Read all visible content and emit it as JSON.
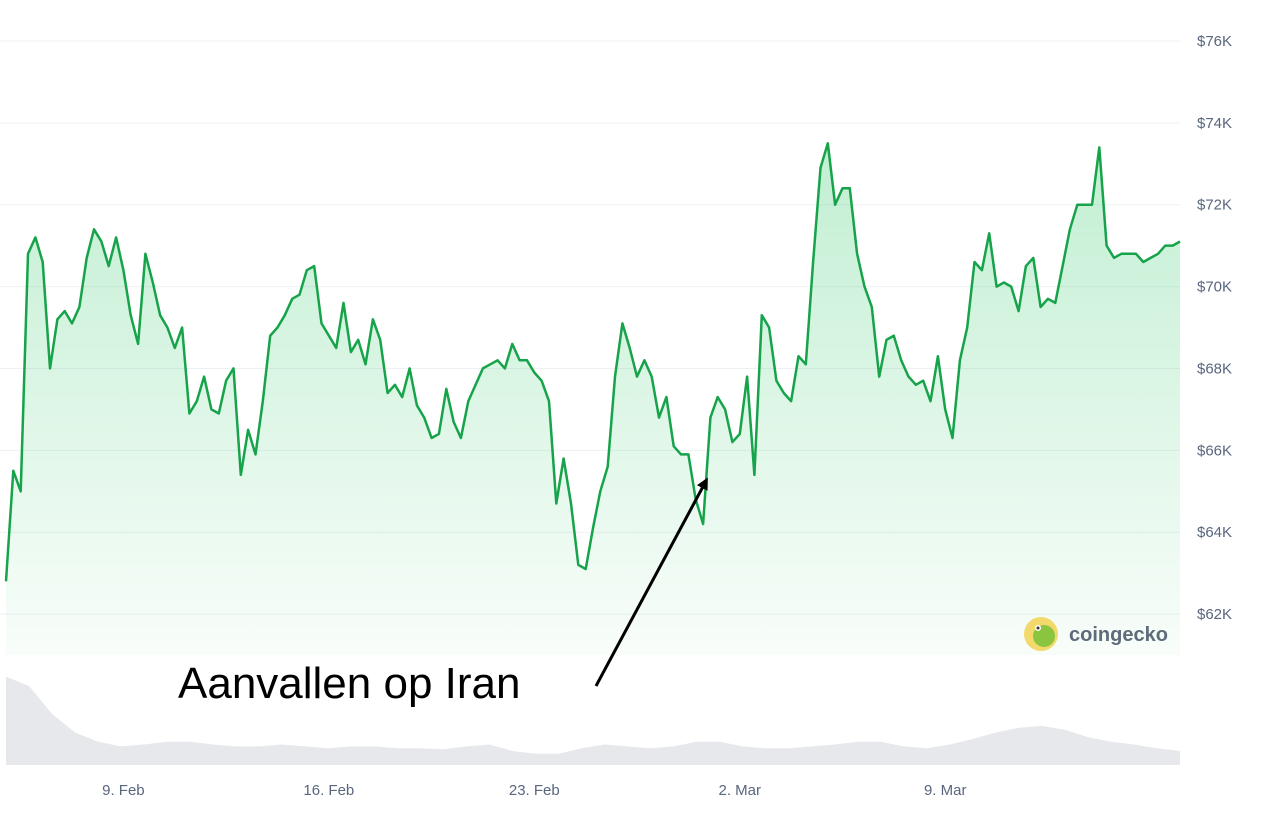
{
  "annotation": {
    "text": "Aanvallen op Iran"
  },
  "brand": {
    "name": "coingecko"
  },
  "colors": {
    "line": "#16a34a",
    "fill": "#22c55e",
    "grid": "#eef0f3",
    "volume": "#e6e8ec",
    "axis_text": "#58667e"
  },
  "chart_data": {
    "type": "area",
    "title": "",
    "xlabel": "",
    "ylabel": "",
    "x_range": [
      "2026-02-05",
      "2026-03-17"
    ],
    "ylim": [
      61000,
      77000
    ],
    "y_ticks": [
      {
        "value": 62000,
        "label": "$62K"
      },
      {
        "value": 64000,
        "label": "$64K"
      },
      {
        "value": 66000,
        "label": "$66K"
      },
      {
        "value": 68000,
        "label": "$68K"
      },
      {
        "value": 70000,
        "label": "$70K"
      },
      {
        "value": 72000,
        "label": "$72K"
      },
      {
        "value": 74000,
        "label": "$74K"
      },
      {
        "value": 76000,
        "label": "$76K"
      }
    ],
    "x_ticks": [
      {
        "date": "2026-02-09",
        "label": "9. Feb"
      },
      {
        "date": "2026-02-16",
        "label": "16. Feb"
      },
      {
        "date": "2026-02-23",
        "label": "23. Feb"
      },
      {
        "date": "2026-03-02",
        "label": "2. Mar"
      },
      {
        "date": "2026-03-09",
        "label": "9. Mar"
      }
    ],
    "grid": true,
    "series": [
      {
        "x": [
          "2026-02-05",
          "2026-02-05 06:00",
          "2026-02-05 12:00",
          "2026-02-05 18:00",
          "2026-02-06",
          "2026-02-06 06:00",
          "2026-02-06 12:00",
          "2026-02-06 18:00",
          "2026-02-07",
          "2026-02-07 06:00",
          "2026-02-07 12:00",
          "2026-02-07 18:00",
          "2026-02-08",
          "2026-02-08 06:00",
          "2026-02-08 12:00",
          "2026-02-08 18:00",
          "2026-02-09",
          "2026-02-09 06:00",
          "2026-02-09 12:00",
          "2026-02-09 18:00",
          "2026-02-10",
          "2026-02-10 06:00",
          "2026-02-10 12:00",
          "2026-02-10 18:00",
          "2026-02-11",
          "2026-02-11 06:00",
          "2026-02-11 12:00",
          "2026-02-11 18:00",
          "2026-02-12",
          "2026-02-12 06:00",
          "2026-02-12 12:00",
          "2026-02-12 18:00",
          "2026-02-13",
          "2026-02-13 06:00",
          "2026-02-13 12:00",
          "2026-02-13 18:00",
          "2026-02-14",
          "2026-02-14 06:00",
          "2026-02-14 12:00",
          "2026-02-14 18:00",
          "2026-02-15",
          "2026-02-15 06:00",
          "2026-02-15 12:00",
          "2026-02-15 18:00",
          "2026-02-16",
          "2026-02-16 06:00",
          "2026-02-16 12:00",
          "2026-02-16 18:00",
          "2026-02-17",
          "2026-02-17 06:00",
          "2026-02-17 12:00",
          "2026-02-17 18:00",
          "2026-02-18",
          "2026-02-18 06:00",
          "2026-02-18 12:00",
          "2026-02-18 18:00",
          "2026-02-19",
          "2026-02-19 06:00",
          "2026-02-19 12:00",
          "2026-02-19 18:00",
          "2026-02-20",
          "2026-02-20 06:00",
          "2026-02-20 12:00",
          "2026-02-20 18:00",
          "2026-02-21",
          "2026-02-21 06:00",
          "2026-02-21 12:00",
          "2026-02-21 18:00",
          "2026-02-22",
          "2026-02-22 06:00",
          "2026-02-22 12:00",
          "2026-02-22 18:00",
          "2026-02-23",
          "2026-02-23 06:00",
          "2026-02-23 12:00",
          "2026-02-23 18:00",
          "2026-02-24",
          "2026-02-24 06:00",
          "2026-02-24 12:00",
          "2026-02-24 18:00",
          "2026-02-25",
          "2026-02-25 06:00",
          "2026-02-25 12:00",
          "2026-02-25 18:00",
          "2026-02-26",
          "2026-02-26 06:00",
          "2026-02-26 12:00",
          "2026-02-26 18:00",
          "2026-02-27",
          "2026-02-27 06:00",
          "2026-02-27 12:00",
          "2026-02-27 18:00",
          "2026-02-28",
          "2026-02-28 06:00",
          "2026-02-28 12:00",
          "2026-02-28 18:00",
          "2026-03-01",
          "2026-03-01 06:00",
          "2026-03-01 12:00",
          "2026-03-01 18:00",
          "2026-03-02",
          "2026-03-02 06:00",
          "2026-03-02 12:00",
          "2026-03-02 18:00",
          "2026-03-03",
          "2026-03-03 06:00",
          "2026-03-03 12:00",
          "2026-03-03 18:00",
          "2026-03-04",
          "2026-03-04 06:00",
          "2026-03-04 12:00",
          "2026-03-04 18:00",
          "2026-03-05",
          "2026-03-05 06:00",
          "2026-03-05 12:00",
          "2026-03-05 18:00",
          "2026-03-06",
          "2026-03-06 06:00",
          "2026-03-06 12:00",
          "2026-03-06 18:00",
          "2026-03-07",
          "2026-03-07 06:00",
          "2026-03-07 12:00",
          "2026-03-07 18:00",
          "2026-03-08",
          "2026-03-08 06:00",
          "2026-03-08 12:00",
          "2026-03-08 18:00",
          "2026-03-09",
          "2026-03-09 06:00",
          "2026-03-09 12:00",
          "2026-03-09 18:00",
          "2026-03-10",
          "2026-03-10 06:00",
          "2026-03-10 12:00",
          "2026-03-10 18:00",
          "2026-03-11",
          "2026-03-11 06:00",
          "2026-03-11 12:00",
          "2026-03-11 18:00",
          "2026-03-12",
          "2026-03-12 06:00",
          "2026-03-12 12:00",
          "2026-03-12 18:00",
          "2026-03-13",
          "2026-03-13 06:00",
          "2026-03-13 12:00",
          "2026-03-13 18:00",
          "2026-03-14",
          "2026-03-14 06:00",
          "2026-03-14 12:00",
          "2026-03-14 18:00",
          "2026-03-15",
          "2026-03-15 06:00",
          "2026-03-15 12:00",
          "2026-03-15 18:00",
          "2026-03-16",
          "2026-03-16 06:00",
          "2026-03-16 12:00",
          "2026-03-16 18:00",
          "2026-03-17"
        ],
        "values": [
          62800,
          65500,
          65000,
          70800,
          71200,
          70600,
          68000,
          69200,
          69400,
          69100,
          69500,
          70700,
          71400,
          71100,
          70500,
          71200,
          70400,
          69300,
          68600,
          70800,
          70100,
          69300,
          69000,
          68500,
          69000,
          66900,
          67200,
          67800,
          67000,
          66900,
          67700,
          68000,
          65400,
          66500,
          65900,
          67200,
          68800,
          69000,
          69300,
          69700,
          69800,
          70400,
          70500,
          69100,
          68800,
          68500,
          69600,
          68400,
          68700,
          68100,
          69200,
          68700,
          67400,
          67600,
          67300,
          68000,
          67100,
          66800,
          66300,
          66400,
          67500,
          66700,
          66300,
          67200,
          67600,
          68000,
          68100,
          68200,
          68000,
          68600,
          68200,
          68200,
          67900,
          67700,
          67200,
          64700,
          65800,
          64700,
          63200,
          63100,
          64100,
          65000,
          65600,
          67800,
          69100,
          68500,
          67800,
          68200,
          67800,
          66800,
          67300,
          66100,
          65900,
          65900,
          64800,
          64200,
          66800,
          67300,
          67000,
          66200,
          66400,
          67800,
          65400,
          69300,
          69000,
          67700,
          67400,
          67200,
          68300,
          68100,
          70600,
          72900,
          73500,
          72000,
          72400,
          72400,
          70800,
          70000,
          69500,
          67800,
          68700,
          68800,
          68200,
          67800,
          67600,
          67700,
          67200,
          68300,
          67000,
          66300,
          68200,
          69000,
          70600,
          70400,
          71300,
          70000,
          70100,
          70000,
          69400,
          70500,
          70700,
          69500,
          69700,
          69600,
          70500,
          71400,
          72000,
          72000,
          72000,
          73400,
          71000,
          70700,
          70800,
          70800,
          70800,
          70600,
          70700,
          70800,
          71000,
          71000,
          71100
        ],
        "name": ""
      }
    ],
    "volume": {
      "values": [
        0.95,
        0.85,
        0.55,
        0.35,
        0.25,
        0.2,
        0.22,
        0.25,
        0.25,
        0.22,
        0.2,
        0.2,
        0.22,
        0.2,
        0.18,
        0.2,
        0.2,
        0.18,
        0.18,
        0.17,
        0.2,
        0.22,
        0.15,
        0.12,
        0.12,
        0.18,
        0.22,
        0.2,
        0.18,
        0.2,
        0.25,
        0.25,
        0.2,
        0.18,
        0.18,
        0.2,
        0.22,
        0.25,
        0.25,
        0.2,
        0.18,
        0.22,
        0.28,
        0.35,
        0.4,
        0.42,
        0.38,
        0.3,
        0.25,
        0.22,
        0.18,
        0.15
      ]
    }
  }
}
